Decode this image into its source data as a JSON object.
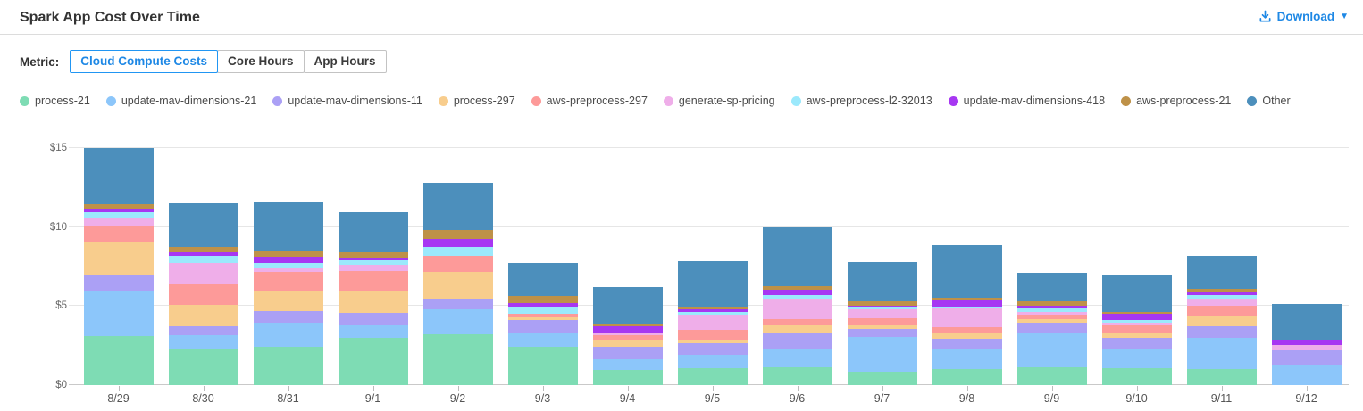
{
  "header": {
    "title": "Spark App Cost Over Time"
  },
  "toolbar": {
    "download_label": "Download",
    "download_icon": "download-icon",
    "caret_icon": "chevron-down-icon"
  },
  "metric": {
    "label": "Metric:",
    "options": [
      {
        "label": "Cloud Compute Costs",
        "selected": true
      },
      {
        "label": "Core Hours",
        "selected": false
      },
      {
        "label": "App Hours",
        "selected": false
      }
    ]
  },
  "colors": {
    "accent": "#1e88e5",
    "accent_border": "#2196f3",
    "axis_text": "#666666",
    "grid": "#e6e6e6"
  },
  "chart_data": {
    "type": "bar",
    "stacked": true,
    "title": "Spark App Cost Over Time",
    "xlabel": "",
    "ylabel": "",
    "ylim": [
      0,
      15
    ],
    "yticks": [
      0,
      5,
      10,
      15
    ],
    "ytick_labels": [
      "$0",
      "$5",
      "$10",
      "$15"
    ],
    "grid": true,
    "legend_position": "top",
    "categories": [
      "8/29",
      "8/30",
      "8/31",
      "9/1",
      "9/2",
      "9/3",
      "9/4",
      "9/5",
      "9/6",
      "9/7",
      "9/8",
      "9/9",
      "9/10",
      "9/11",
      "9/12"
    ],
    "series": [
      {
        "name": "process-21",
        "color": "#7edcb4",
        "values": [
          3.1,
          2.25,
          2.4,
          3.0,
          3.2,
          2.45,
          0.95,
          1.05,
          1.15,
          0.85,
          1.0,
          1.15,
          1.1,
          1.0,
          0
        ]
      },
      {
        "name": "update-mav-dimensions-21",
        "color": "#8cc6fa",
        "values": [
          2.9,
          0.9,
          1.55,
          0.85,
          1.6,
          0.85,
          0.7,
          0.85,
          1.1,
          2.2,
          1.25,
          2.1,
          1.2,
          2.0,
          1.3
        ]
      },
      {
        "name": "update-mav-dimensions-11",
        "color": "#aba0f5",
        "values": [
          1.0,
          0.55,
          0.75,
          0.7,
          0.7,
          0.8,
          0.75,
          0.75,
          1.0,
          0.5,
          0.7,
          0.7,
          0.7,
          0.7,
          0.9
        ]
      },
      {
        "name": "process-297",
        "color": "#f8cd8d",
        "values": [
          2.1,
          1.35,
          1.3,
          1.45,
          1.65,
          0.2,
          0.45,
          0.25,
          0.55,
          0.3,
          0.3,
          0.2,
          0.3,
          0.65,
          0
        ]
      },
      {
        "name": "aws-preprocess-297",
        "color": "#fd9a99",
        "values": [
          1.0,
          1.4,
          1.15,
          1.2,
          1.05,
          0.2,
          0.3,
          0.6,
          0.4,
          0.4,
          0.4,
          0.3,
          0.55,
          0.65,
          0
        ]
      },
      {
        "name": "generate-sp-pricing",
        "color": "#efaee9",
        "values": [
          0.45,
          1.3,
          0.25,
          0.4,
          0,
          0,
          0.1,
          0.95,
          1.3,
          0.55,
          1.2,
          0.2,
          0.1,
          0.5,
          0.35
        ]
      },
      {
        "name": "aws-preprocess-l2-32013",
        "color": "#9be9fc",
        "values": [
          0.4,
          0.45,
          0.35,
          0.3,
          0.55,
          0.45,
          0.1,
          0.15,
          0.2,
          0.15,
          0.1,
          0.2,
          0.15,
          0.2,
          0
        ]
      },
      {
        "name": "update-mav-dimensions-418",
        "color": "#a737f2",
        "values": [
          0.2,
          0.2,
          0.35,
          0.15,
          0.5,
          0.25,
          0.4,
          0.2,
          0.35,
          0.1,
          0.4,
          0.2,
          0.4,
          0.2,
          0.35
        ]
      },
      {
        "name": "aws-preprocess-21",
        "color": "#be9148",
        "values": [
          0.3,
          0.35,
          0.35,
          0.35,
          0.55,
          0.45,
          0.15,
          0.15,
          0.2,
          0.25,
          0.2,
          0.25,
          0.15,
          0.2,
          0
        ]
      },
      {
        "name": "Other",
        "color": "#4c8fbc",
        "values": [
          3.55,
          2.75,
          3.1,
          2.55,
          3.0,
          2.1,
          2.3,
          2.9,
          3.75,
          2.5,
          3.3,
          1.8,
          2.3,
          2.1,
          2.25
        ]
      }
    ]
  }
}
